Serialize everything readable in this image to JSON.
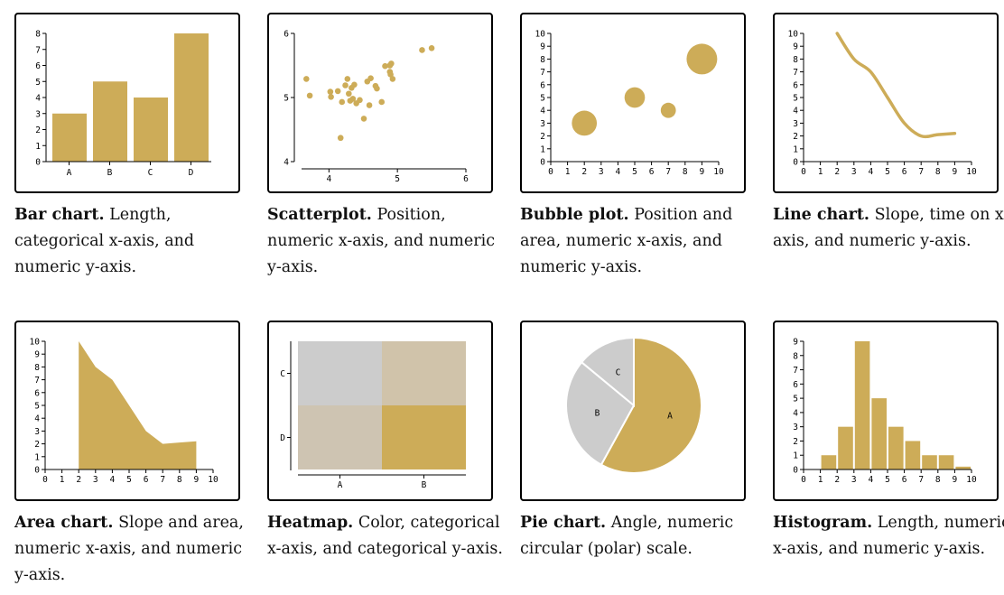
{
  "colors": {
    "gold": "#cdac58",
    "grey": "#cccccc",
    "heat_mid1": "#d0c3aa",
    "heat_mid2": "#cec4b2"
  },
  "panels": [
    {
      "title": "Bar chart.",
      "desc": "Length, categorical x-axis, and numeric y-axis."
    },
    {
      "title": "Scatterplot.",
      "desc": "Position, numeric x-axis, and numeric y-axis."
    },
    {
      "title": "Bubble plot.",
      "desc": "Position and area, numeric x-axis, and numeric y-axis."
    },
    {
      "title": "Line chart.",
      "desc": "Slope, time on x-axis, and numeric y-axis."
    },
    {
      "title": "Area chart.",
      "desc": "Slope and area, numeric x-axis, and numeric y-axis."
    },
    {
      "title": "Heatmap.",
      "desc": "Color, categorical x-axis, and categorical y-axis."
    },
    {
      "title": "Pie chart.",
      "desc": "Angle, numeric circular (polar) scale."
    },
    {
      "title": "Histogram.",
      "desc": "Length, numeric x-axis, and numeric y-axis."
    }
  ],
  "chart_data": [
    {
      "type": "bar",
      "categories": [
        "A",
        "B",
        "C",
        "D"
      ],
      "values": [
        3,
        5,
        4,
        8
      ],
      "ylim": [
        0,
        8
      ],
      "yticks": [
        0,
        1,
        2,
        3,
        4,
        5,
        6,
        7,
        8
      ]
    },
    {
      "type": "scatter",
      "xlim": [
        3.6,
        6
      ],
      "ylim": [
        4,
        6
      ],
      "xticks": [
        4,
        5,
        6
      ],
      "yticks": [
        4,
        5,
        6
      ],
      "points": [
        [
          3.67,
          5.29
        ],
        [
          3.72,
          5.03
        ],
        [
          4.02,
          5.09
        ],
        [
          4.03,
          5.01
        ],
        [
          4.13,
          5.1
        ],
        [
          4.17,
          4.37
        ],
        [
          4.19,
          4.93
        ],
        [
          4.24,
          5.19
        ],
        [
          4.27,
          5.29
        ],
        [
          4.29,
          5.06
        ],
        [
          4.31,
          4.95
        ],
        [
          4.33,
          5.15
        ],
        [
          4.35,
          4.98
        ],
        [
          4.37,
          5.2
        ],
        [
          4.4,
          4.91
        ],
        [
          4.45,
          4.96
        ],
        [
          4.51,
          4.67
        ],
        [
          4.56,
          5.25
        ],
        [
          4.59,
          4.88
        ],
        [
          4.61,
          5.3
        ],
        [
          4.68,
          5.18
        ],
        [
          4.7,
          5.14
        ],
        [
          4.77,
          4.93
        ],
        [
          4.82,
          5.49
        ],
        [
          4.89,
          5.4
        ],
        [
          4.89,
          5.5
        ],
        [
          4.9,
          5.36
        ],
        [
          4.91,
          5.53
        ],
        [
          4.93,
          5.29
        ],
        [
          5.36,
          5.74
        ],
        [
          5.5,
          5.77
        ]
      ]
    },
    {
      "type": "bubble",
      "xlim": [
        0,
        10
      ],
      "ylim": [
        0,
        10
      ],
      "xticks": [
        0,
        1,
        2,
        3,
        4,
        5,
        6,
        7,
        8,
        9,
        10
      ],
      "yticks": [
        0,
        1,
        2,
        3,
        4,
        5,
        6,
        7,
        8,
        9,
        10
      ],
      "points": [
        {
          "x": 2,
          "y": 3,
          "size": 3
        },
        {
          "x": 5,
          "y": 5,
          "size": 2
        },
        {
          "x": 7,
          "y": 4,
          "size": 1.1
        },
        {
          "x": 9,
          "y": 8,
          "size": 4.5
        }
      ]
    },
    {
      "type": "line",
      "xlim": [
        0,
        10
      ],
      "ylim": [
        0,
        10
      ],
      "xticks": [
        0,
        1,
        2,
        3,
        4,
        5,
        6,
        7,
        8,
        9,
        10
      ],
      "yticks": [
        0,
        1,
        2,
        3,
        4,
        5,
        6,
        7,
        8,
        9,
        10
      ],
      "x": [
        2,
        3,
        4,
        5,
        6,
        7,
        8,
        9
      ],
      "y": [
        10,
        8,
        7,
        5,
        3,
        2,
        2.1,
        2.2
      ]
    },
    {
      "type": "area",
      "xlim": [
        0,
        10
      ],
      "ylim": [
        0,
        10
      ],
      "xticks": [
        0,
        1,
        2,
        3,
        4,
        5,
        6,
        7,
        8,
        9,
        10
      ],
      "yticks": [
        0,
        1,
        2,
        3,
        4,
        5,
        6,
        7,
        8,
        9,
        10
      ],
      "x": [
        2,
        3,
        4,
        5,
        6,
        7,
        8,
        9
      ],
      "y": [
        10,
        8,
        7,
        5,
        3,
        2,
        2.1,
        2.2
      ]
    },
    {
      "type": "heatmap",
      "xcategories": [
        "A",
        "B"
      ],
      "ycategories": [
        "C",
        "D"
      ],
      "cells": [
        {
          "x": "A",
          "y": "C",
          "value": 0.0
        },
        {
          "x": "B",
          "y": "C",
          "value": 0.5
        },
        {
          "x": "A",
          "y": "D",
          "value": 0.35
        },
        {
          "x": "B",
          "y": "D",
          "value": 1.0
        }
      ]
    },
    {
      "type": "pie",
      "slices": [
        {
          "label": "A",
          "value": 58
        },
        {
          "label": "B",
          "value": 28
        },
        {
          "label": "C",
          "value": 14
        }
      ]
    },
    {
      "type": "bar",
      "subtype": "histogram",
      "xlim": [
        0,
        10
      ],
      "ylim": [
        0,
        9
      ],
      "xticks": [
        0,
        1,
        2,
        3,
        4,
        5,
        6,
        7,
        8,
        9,
        10
      ],
      "yticks": [
        0,
        1,
        2,
        3,
        4,
        5,
        6,
        7,
        8,
        9
      ],
      "bins": [
        {
          "x0": 1,
          "x1": 2,
          "count": 1
        },
        {
          "x0": 2,
          "x1": 3,
          "count": 3
        },
        {
          "x0": 3,
          "x1": 4,
          "count": 9
        },
        {
          "x0": 4,
          "x1": 5,
          "count": 5
        },
        {
          "x0": 5,
          "x1": 6,
          "count": 3
        },
        {
          "x0": 6,
          "x1": 7,
          "count": 2
        },
        {
          "x0": 7,
          "x1": 8,
          "count": 1
        },
        {
          "x0": 8,
          "x1": 9,
          "count": 1
        },
        {
          "x0": 9,
          "x1": 10,
          "count": 0.2
        }
      ]
    }
  ]
}
